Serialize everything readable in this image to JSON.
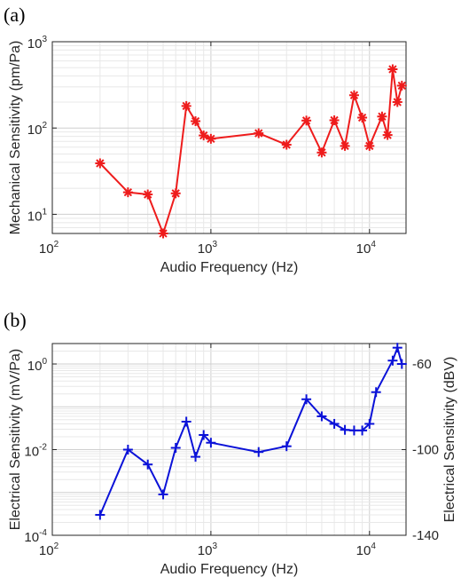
{
  "chart_data": [
    {
      "panel_label": "(a)",
      "type": "line",
      "xlabel": "Audio Frequency (Hz)",
      "ylabel": "Mechanical Sensitivity (pm/Pa)",
      "xscale": "log",
      "yscale": "log",
      "xlim": [
        100,
        17000
      ],
      "ylim": [
        6,
        1000
      ],
      "x_ticks": [
        {
          "base": "10",
          "exp": "2"
        },
        {
          "base": "10",
          "exp": "3"
        },
        {
          "base": "10",
          "exp": "4"
        }
      ],
      "y_ticks": [
        {
          "base": "10",
          "exp": "1"
        },
        {
          "base": "10",
          "exp": "2"
        },
        {
          "base": "10",
          "exp": "3"
        }
      ],
      "grid": true,
      "marker": "asterisk",
      "series": [
        {
          "color": "#ee1c1c",
          "x": [
            200,
            300,
            400,
            500,
            600,
            700,
            800,
            900,
            1000,
            2000,
            3000,
            4000,
            5000,
            6000,
            7000,
            8000,
            9000,
            10000,
            12000,
            13000,
            14000,
            15000,
            16000
          ],
          "y": [
            39,
            18,
            17,
            6,
            17.5,
            180,
            120,
            82,
            75,
            87,
            64,
            122,
            52,
            123,
            62,
            240,
            132,
            62,
            136,
            83,
            480,
            200,
            310
          ]
        }
      ]
    },
    {
      "panel_label": "(b)",
      "type": "line",
      "xlabel": "Audio Frequency (Hz)",
      "ylabel": "Electrical Sensitivity (mV/Pa)",
      "ylabel_right": "Electrical Sensitivity (dBV)",
      "xscale": "log",
      "yscale": "log",
      "xlim": [
        100,
        17000
      ],
      "ylim": [
        0.0001,
        3
      ],
      "x_ticks": [
        {
          "base": "10",
          "exp": "2"
        },
        {
          "base": "10",
          "exp": "3"
        },
        {
          "base": "10",
          "exp": "4"
        }
      ],
      "y_ticks": [
        {
          "base": "10",
          "exp": "-4"
        },
        {
          "base": "10",
          "exp": "-2"
        },
        {
          "base": "10",
          "exp": "0"
        }
      ],
      "y_ticks_right": [
        "-140",
        "-100",
        "-60"
      ],
      "grid": true,
      "marker": "plus",
      "series": [
        {
          "color": "#0b12d8",
          "x": [
            200,
            300,
            400,
            500,
            600,
            700,
            800,
            900,
            1000,
            2000,
            3000,
            4000,
            5000,
            6000,
            7000,
            8000,
            9000,
            10000,
            11000,
            14000,
            15000,
            16000
          ],
          "y": [
            0.0003,
            0.01,
            0.0045,
            0.0009,
            0.011,
            0.045,
            0.0068,
            0.022,
            0.0145,
            0.0088,
            0.012,
            0.15,
            0.06,
            0.04,
            0.029,
            0.028,
            0.028,
            0.04,
            0.22,
            1.2,
            2.4,
            1.0
          ]
        }
      ]
    }
  ]
}
